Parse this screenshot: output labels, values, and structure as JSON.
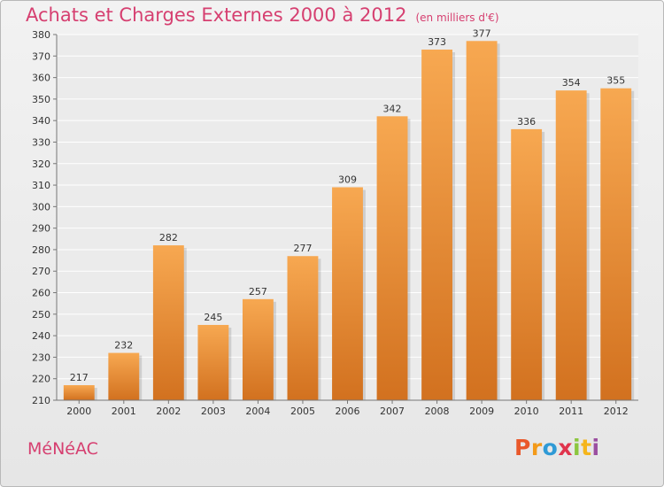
{
  "header": {
    "title": "Achats et Charges Externes 2000 à 2012",
    "unit": "(en milliers d'€)"
  },
  "footer": {
    "commune": "MéNéAC",
    "logo": [
      "P",
      "r",
      "o",
      "x",
      "i",
      "t",
      "i"
    ],
    "logo_colors": [
      "#e9582a",
      "#f39a1a",
      "#2f9ad6",
      "#e0344d",
      "#8cc63f",
      "#f5b51b",
      "#9b4fa0"
    ]
  },
  "colors": {
    "bar_light": "#f7a851",
    "bar_dark": "#d2711f",
    "accent": "#d63f70"
  },
  "chart_data": {
    "type": "bar",
    "title": "Achats et Charges Externes 2000 à 2012",
    "categories": [
      "2000",
      "2001",
      "2002",
      "2003",
      "2004",
      "2005",
      "2006",
      "2007",
      "2008",
      "2009",
      "2010",
      "2011",
      "2012"
    ],
    "values": [
      217,
      232,
      282,
      245,
      257,
      277,
      309,
      342,
      373,
      377,
      336,
      354,
      355
    ],
    "ylim": [
      210,
      380
    ],
    "yticks": [
      210,
      220,
      230,
      240,
      250,
      260,
      270,
      280,
      290,
      300,
      310,
      320,
      330,
      340,
      350,
      360,
      370,
      380
    ],
    "grid": true,
    "legend": "none"
  }
}
